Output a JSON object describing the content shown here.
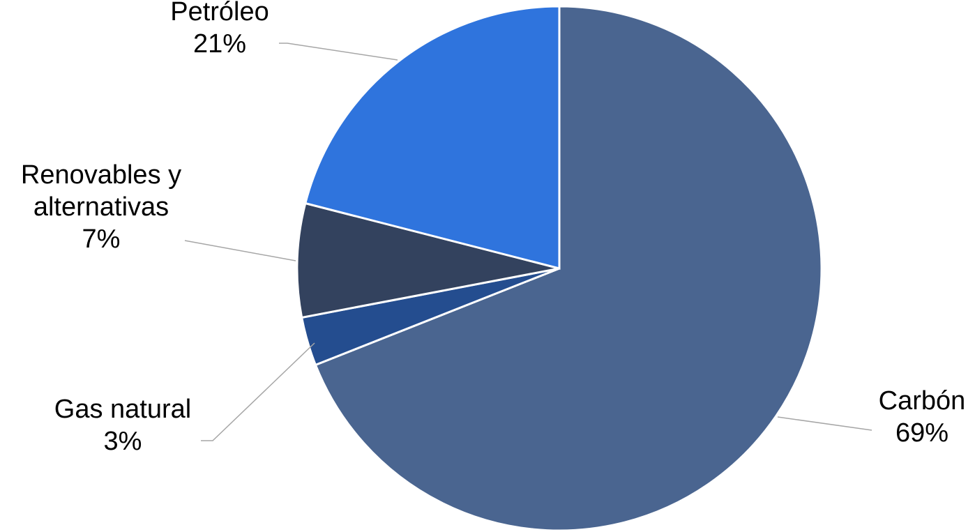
{
  "chart_data": {
    "type": "pie",
    "start_angle_deg": 0,
    "direction": "clockwise",
    "slices": [
      {
        "name": "Carbón",
        "value": 69,
        "label": "69%",
        "color": "#4a6590"
      },
      {
        "name": "Gas natural",
        "value": 3,
        "label": "3%",
        "color": "#244d8f"
      },
      {
        "name": "Renovables y alternativas",
        "value": 7,
        "label": "7%",
        "color": "#33425e"
      },
      {
        "name": "Petróleo",
        "value": 21,
        "label": "21%",
        "color": "#2f74dd"
      }
    ]
  },
  "labels": [
    {
      "lines": [
        "Carbón",
        "69%"
      ]
    },
    {
      "lines": [
        "Gas natural",
        "3%"
      ]
    },
    {
      "lines": [
        "Renovables y",
        "alternativas",
        "7%"
      ]
    },
    {
      "lines": [
        "Petróleo",
        "21%"
      ]
    }
  ]
}
